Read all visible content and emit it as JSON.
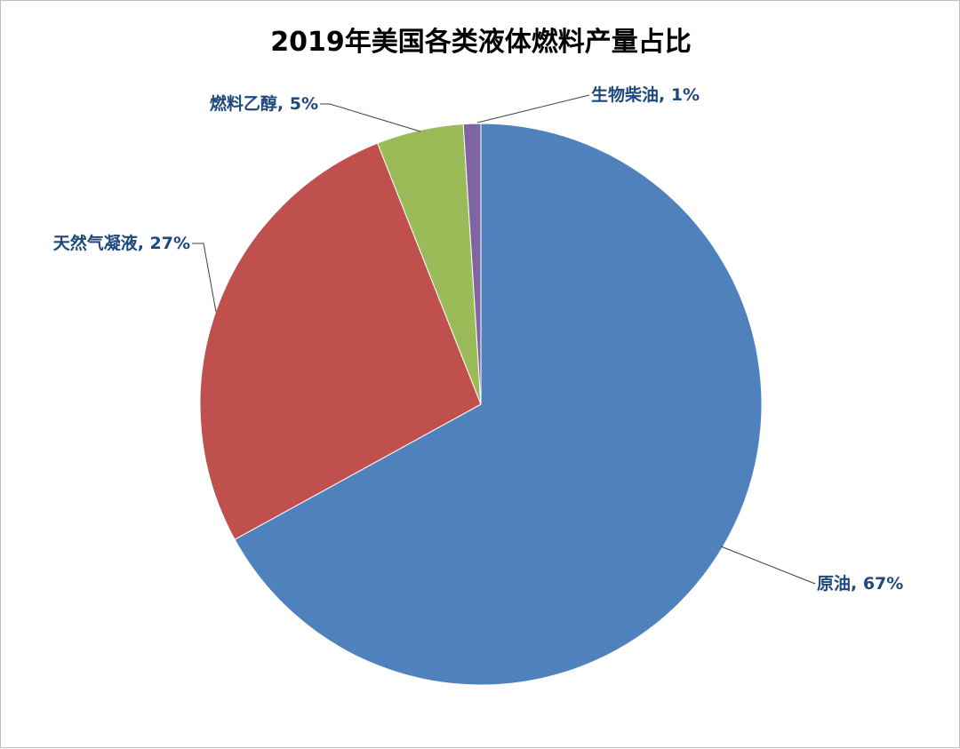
{
  "chart_data": {
    "type": "pie",
    "title": "2019年美国各类液体燃料产量占比",
    "categories": [
      "原油",
      "天然气凝液",
      "燃料乙醇",
      "生物柴油"
    ],
    "values": [
      67,
      27,
      5,
      1
    ],
    "labels": [
      "原油, 67%",
      "天然气凝液, 27%",
      "燃料乙醇, 5%",
      "生物柴油, 1%"
    ],
    "colors": [
      "#4f81bd",
      "#c0504d",
      "#9bbb59",
      "#8064a2"
    ],
    "label_color": "#1f497d",
    "start_angle_deg": 90,
    "direction": "clockwise",
    "legend": "none"
  }
}
